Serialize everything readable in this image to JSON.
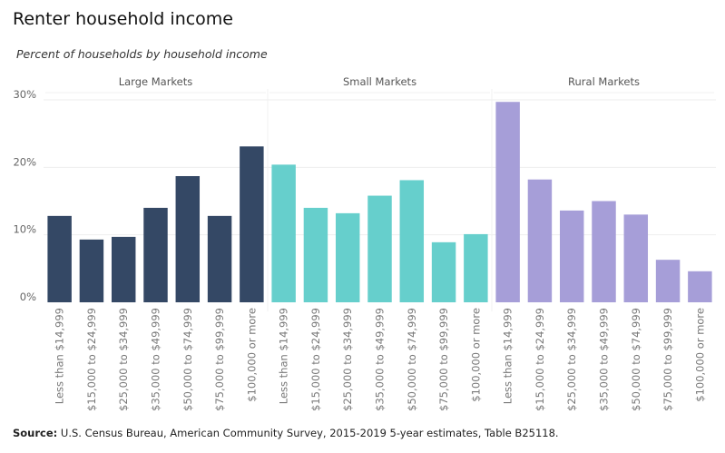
{
  "title": "Renter household income",
  "subtitle": "Percent of households by household income",
  "source": {
    "label": "Source:",
    "text": "U.S. Census Bureau, American Community Survey, 2015-2019 5-year estimates, Table B25118."
  },
  "chart_data": {
    "type": "bar",
    "categories": [
      "Less than $14,999",
      "$15,000 to $24,999",
      "$25,000 to $34,999",
      "$35,000 to $49,999",
      "$50,000 to $74,999",
      "$75,000 to $99,999",
      "$100,000 or more"
    ],
    "y_ticks": [
      "0%",
      "10%",
      "20%",
      "30%"
    ],
    "y_tick_values": [
      0,
      10,
      20,
      30
    ],
    "ylim": [
      0,
      30
    ],
    "grid": true,
    "series": [
      {
        "name": "Large Markets",
        "color": "#344865",
        "values": [
          12.8,
          9.3,
          9.7,
          14.0,
          18.7,
          12.8,
          23.1
        ]
      },
      {
        "name": "Small Markets",
        "color": "#66cfcc",
        "values": [
          20.4,
          14.0,
          13.2,
          15.8,
          18.1,
          8.9,
          10.1
        ]
      },
      {
        "name": "Rural Markets",
        "color": "#a69ed8",
        "values": [
          29.7,
          18.2,
          13.6,
          15.0,
          13.0,
          6.3,
          4.6
        ]
      }
    ]
  }
}
